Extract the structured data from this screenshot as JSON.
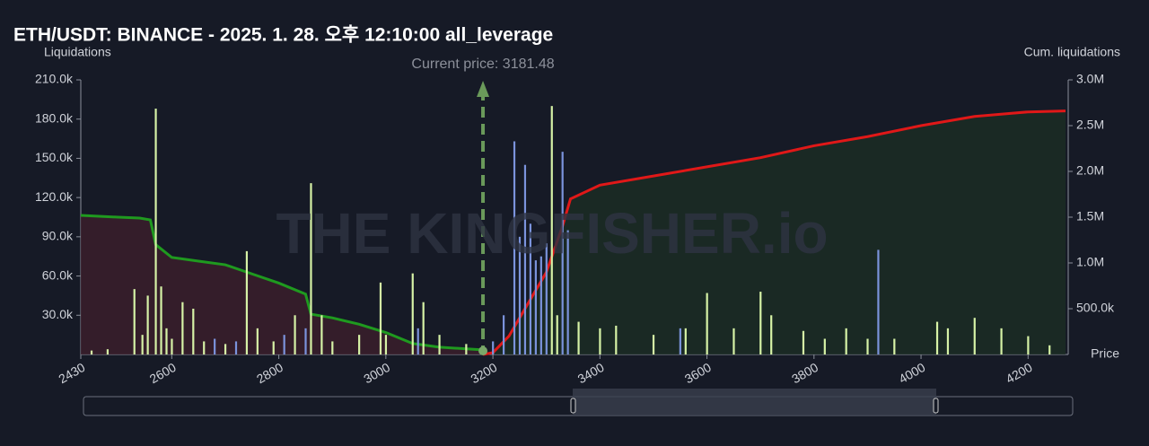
{
  "chart_data": {
    "type": "combo",
    "title": "ETH/USDT: BINANCE - 2025. 1. 28. 오후 12:10:00 all_leverage",
    "y_label": "Liquidations",
    "y2_label": "Cum. liquidations",
    "x_label": "Price",
    "watermark": "THE KINGFISHER.io",
    "annotation": "Current price: 3181.48",
    "current_price": 3181.48,
    "xlim": [
      2430,
      4275
    ],
    "xticks": [
      2430,
      2600,
      2800,
      3000,
      3200,
      3400,
      3600,
      3800,
      4000,
      4200
    ],
    "ylim": [
      0,
      210000
    ],
    "yticks": [
      {
        "value": 30000,
        "label": "30.0k"
      },
      {
        "value": 60000,
        "label": "60.0k"
      },
      {
        "value": 90000,
        "label": "90.0k"
      },
      {
        "value": 120000,
        "label": "120.0k"
      },
      {
        "value": 150000,
        "label": "150.0k"
      },
      {
        "value": 180000,
        "label": "180.0k"
      },
      {
        "value": 210000,
        "label": "210.0k"
      }
    ],
    "y2lim": [
      0,
      3000000
    ],
    "y2ticks": [
      {
        "value": 500000,
        "label": "500.0k"
      },
      {
        "value": 1000000,
        "label": "1.0M"
      },
      {
        "value": 1500000,
        "label": "1.5M"
      },
      {
        "value": 2000000,
        "label": "2.0M"
      },
      {
        "value": 2500000,
        "label": "2.5M"
      },
      {
        "value": 3000000,
        "label": "3.0M"
      }
    ],
    "series": [
      {
        "type": "bar",
        "color": "#d6f2a6",
        "x": [
          2450,
          2480,
          2530,
          2545,
          2555,
          2570,
          2580,
          2590,
          2600,
          2620,
          2640,
          2660,
          2700,
          2740,
          2760,
          2790,
          2830,
          2860,
          2880,
          2900,
          2950,
          2990,
          3000,
          3050,
          3070,
          3100,
          3150,
          3310,
          3320,
          3360,
          3400,
          3430,
          3500,
          3560,
          3600,
          3650,
          3700,
          3720,
          3780,
          3820,
          3860,
          3900,
          3950,
          4030,
          4050,
          4100,
          4150,
          4200,
          4240
        ],
        "values": [
          3000,
          4000,
          50000,
          15000,
          45000,
          188000,
          52000,
          20000,
          12000,
          40000,
          35000,
          10000,
          8000,
          79000,
          20000,
          10000,
          30000,
          131000,
          30000,
          10000,
          15000,
          55000,
          15000,
          62000,
          40000,
          15000,
          8000,
          190000,
          30000,
          25000,
          20000,
          22000,
          15000,
          20000,
          47000,
          20000,
          48000,
          30000,
          18000,
          12000,
          20000,
          12000,
          12000,
          25000,
          20000,
          28000,
          20000,
          14000,
          7000
        ]
      },
      {
        "type": "bar",
        "color": "#7b93dc",
        "x": [
          2680,
          2720,
          2810,
          2850,
          3060,
          3200,
          3220,
          3240,
          3250,
          3260,
          3270,
          3280,
          3290,
          3300,
          3330,
          3340,
          3550,
          3920
        ],
        "values": [
          12000,
          10000,
          15000,
          20000,
          20000,
          10000,
          30000,
          163000,
          90000,
          145000,
          100000,
          72000,
          75000,
          85000,
          155000,
          95000,
          20000,
          80000
        ]
      },
      {
        "type": "line",
        "axis": "y2",
        "color": "#1f9a1f",
        "fill": "#3a1f2b",
        "x": [
          2430,
          2500,
          2540,
          2560,
          2570,
          2600,
          2650,
          2700,
          2750,
          2800,
          2850,
          2860,
          2900,
          2950,
          3000,
          3050,
          3100,
          3181.48
        ],
        "values": [
          1520000,
          1500000,
          1490000,
          1470000,
          1200000,
          1060000,
          1020000,
          980000,
          880000,
          780000,
          660000,
          440000,
          400000,
          330000,
          240000,
          120000,
          80000,
          50000
        ]
      },
      {
        "type": "line",
        "axis": "y2",
        "color": "#e01818",
        "fill": "#1b2d25",
        "x": [
          3181.48,
          3200,
          3230,
          3260,
          3300,
          3330,
          3345,
          3400,
          3500,
          3600,
          3700,
          3800,
          3900,
          4000,
          4100,
          4200,
          4270
        ],
        "values": [
          0,
          20000,
          200000,
          500000,
          900000,
          1400000,
          1700000,
          1850000,
          1950000,
          2050000,
          2150000,
          2280000,
          2380000,
          2500000,
          2600000,
          2650000,
          2660000
        ]
      }
    ]
  }
}
